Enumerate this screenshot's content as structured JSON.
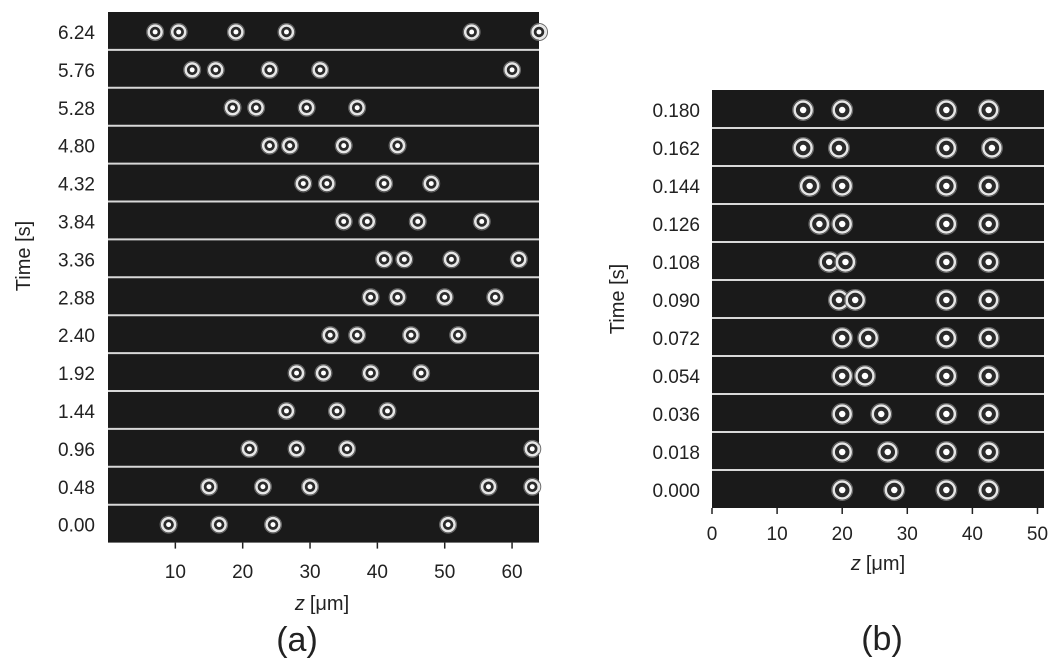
{
  "figure": {
    "caption_a": "(a)",
    "caption_b": "(b)"
  },
  "colors": {
    "strip_background": "#1a1a1a",
    "separator": "#d8d8d8",
    "particle_ring": "#e6e6e6",
    "particle_core": "#ffffff"
  },
  "chart_data": [
    {
      "type": "scatter",
      "panel": "(a)",
      "xlabel_var": "z",
      "xlabel_unit": "[μm]",
      "ylabel": "Time [s]",
      "xlim": [
        0,
        64
      ],
      "x_ticks": [
        10,
        20,
        30,
        40,
        50,
        60
      ],
      "x_tick_labels": [
        "10",
        "20",
        "30",
        "40",
        "50",
        "60"
      ],
      "rows": [
        {
          "time": "6.24",
          "positions": [
            7,
            10.5,
            19,
            26.5,
            54,
            64
          ]
        },
        {
          "time": "5.76",
          "positions": [
            12.5,
            16,
            24,
            31.5,
            60
          ]
        },
        {
          "time": "5.28",
          "positions": [
            18.5,
            22,
            29.5,
            37
          ]
        },
        {
          "time": "4.80",
          "positions": [
            24,
            27,
            35,
            43
          ]
        },
        {
          "time": "4.32",
          "positions": [
            29,
            32.5,
            41,
            48
          ]
        },
        {
          "time": "3.84",
          "positions": [
            35,
            38.5,
            46,
            55.5
          ]
        },
        {
          "time": "3.36",
          "positions": [
            41,
            44,
            51,
            61
          ]
        },
        {
          "time": "2.88",
          "positions": [
            39,
            43,
            50,
            57.5
          ]
        },
        {
          "time": "2.40",
          "positions": [
            33,
            37,
            45,
            52
          ]
        },
        {
          "time": "1.92",
          "positions": [
            28,
            32,
            39,
            46.5
          ]
        },
        {
          "time": "1.44",
          "positions": [
            26.5,
            34,
            41.5
          ]
        },
        {
          "time": "0.96",
          "positions": [
            21,
            28,
            35.5,
            63
          ]
        },
        {
          "time": "0.48",
          "positions": [
            15,
            23,
            30,
            56.5,
            63
          ]
        },
        {
          "time": "0.00",
          "positions": [
            9,
            16.5,
            24.5,
            50.5
          ]
        }
      ]
    },
    {
      "type": "scatter",
      "panel": "(b)",
      "xlabel_var": "z",
      "xlabel_unit": "[μm]",
      "ylabel": "Time [s]",
      "xlim": [
        0,
        51
      ],
      "x_ticks": [
        0,
        10,
        20,
        30,
        40,
        50
      ],
      "x_tick_labels": [
        "0",
        "10",
        "20",
        "30",
        "40",
        "50"
      ],
      "rows": [
        {
          "time": "0.180",
          "positions": [
            14,
            20,
            36,
            42.5
          ]
        },
        {
          "time": "0.162",
          "positions": [
            14,
            19.5,
            36,
            43
          ]
        },
        {
          "time": "0.144",
          "positions": [
            15,
            20,
            36,
            42.5
          ]
        },
        {
          "time": "0.126",
          "positions": [
            16.5,
            20,
            36,
            42.5
          ]
        },
        {
          "time": "0.108",
          "positions": [
            18,
            20.5,
            36,
            42.5
          ]
        },
        {
          "time": "0.090",
          "positions": [
            19.5,
            22,
            36,
            42.5
          ]
        },
        {
          "time": "0.072",
          "positions": [
            20,
            24,
            36,
            42.5
          ]
        },
        {
          "time": "0.054",
          "positions": [
            20,
            23.5,
            36,
            42.5
          ]
        },
        {
          "time": "0.036",
          "positions": [
            20,
            26,
            36,
            42.5
          ]
        },
        {
          "time": "0.018",
          "positions": [
            20,
            27,
            36,
            42.5
          ]
        },
        {
          "time": "0.000",
          "positions": [
            20,
            28,
            36,
            42.5
          ]
        }
      ]
    }
  ]
}
